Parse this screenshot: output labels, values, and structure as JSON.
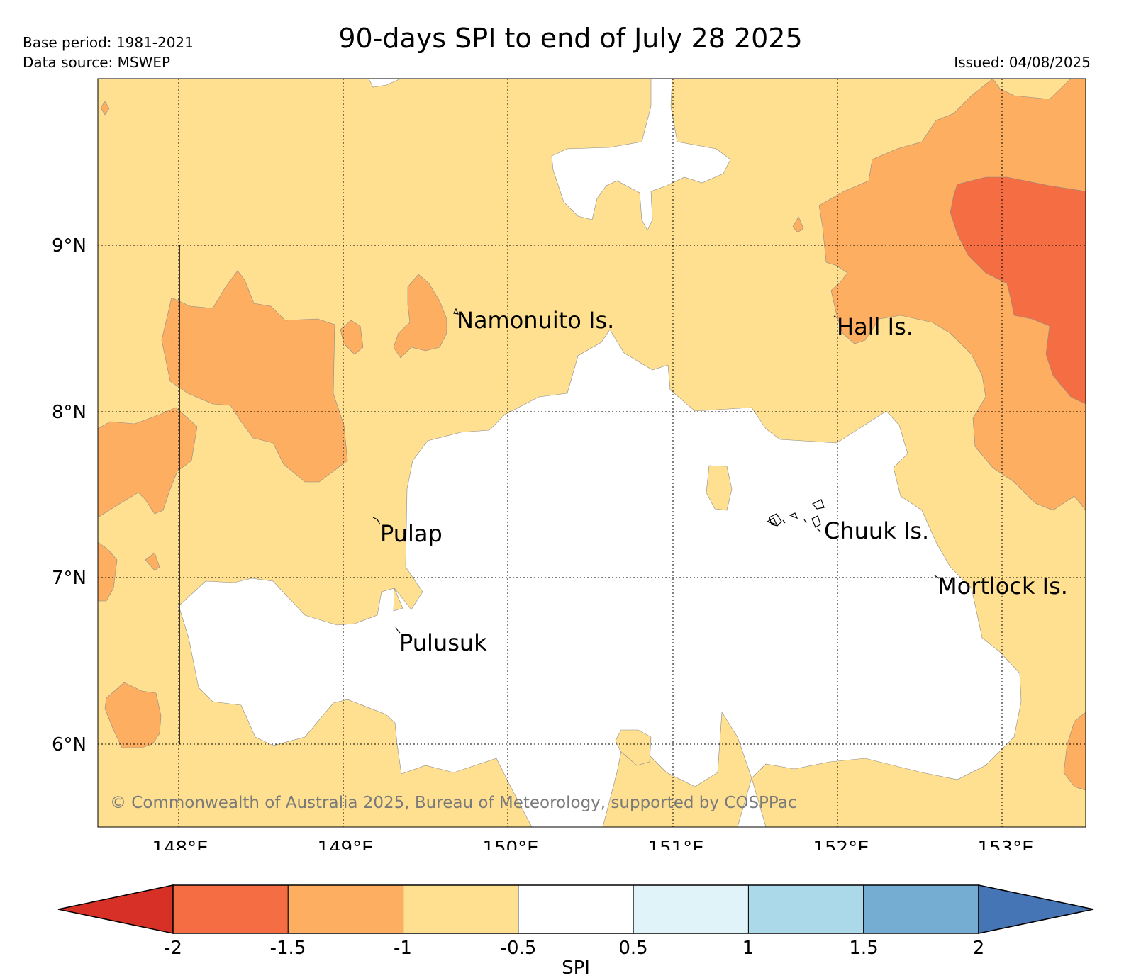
{
  "header": {
    "title": "90-days SPI to end of July 28 2025",
    "base_period": "Base period: 1981-2021",
    "data_source": "Data source: MSWEP",
    "issued": "Issued: 04/08/2025"
  },
  "map": {
    "lon_range": [
      147.5,
      153.5
    ],
    "lat_range": [
      5.5,
      10.0
    ],
    "lon_ticks": [
      {
        "value": 148,
        "label": "148°E"
      },
      {
        "value": 149,
        "label": "149°E"
      },
      {
        "value": 150,
        "label": "150°E"
      },
      {
        "value": 151,
        "label": "151°E"
      },
      {
        "value": 152,
        "label": "152°E"
      },
      {
        "value": 153,
        "label": "153°E"
      }
    ],
    "lat_ticks": [
      {
        "value": 9,
        "label": "9°N"
      },
      {
        "value": 8,
        "label": "8°N"
      },
      {
        "value": 7,
        "label": "7°N"
      },
      {
        "value": 6,
        "label": "6°N"
      }
    ],
    "places": [
      {
        "name": "Namonuito Is.",
        "lon": 149.68,
        "lat": 8.56
      },
      {
        "name": "Hall Is.",
        "lon": 151.98,
        "lat": 8.52
      },
      {
        "name": "Pulap",
        "lon": 149.22,
        "lat": 7.28
      },
      {
        "name": "Chuuk Is.",
        "lon": 151.88,
        "lat": 7.3
      },
      {
        "name": "Mortlock Is.",
        "lon": 152.62,
        "lat": 6.95
      },
      {
        "name": "Pulusuk",
        "lon": 149.33,
        "lat": 6.61
      }
    ],
    "copyright": "© Commonwealth of Australia 2025, Bureau of Meteorology, supported by COSPPac",
    "colors": {
      "lt_-2": "#d73027",
      "-2_-1.5": "#f46d43",
      "-1.5_-1": "#fdae61",
      "-1_-0.5": "#fee090",
      "-0.5_0.5": "#ffffff",
      "0.5_1": "#e0f3f8",
      "1_1.5": "#abd9e9",
      "1.5_2": "#74add1",
      "gt_2": "#4575b4"
    }
  },
  "colorbar": {
    "label": "SPI",
    "ticks": [
      "-2",
      "-1.5",
      "-1",
      "-0.5",
      "0.5",
      "1",
      "1.5",
      "2"
    ],
    "colors": [
      "#d73027",
      "#f46d43",
      "#fdae61",
      "#fee090",
      "#ffffff",
      "#e0f3f8",
      "#abd9e9",
      "#74add1",
      "#4575b4"
    ]
  }
}
